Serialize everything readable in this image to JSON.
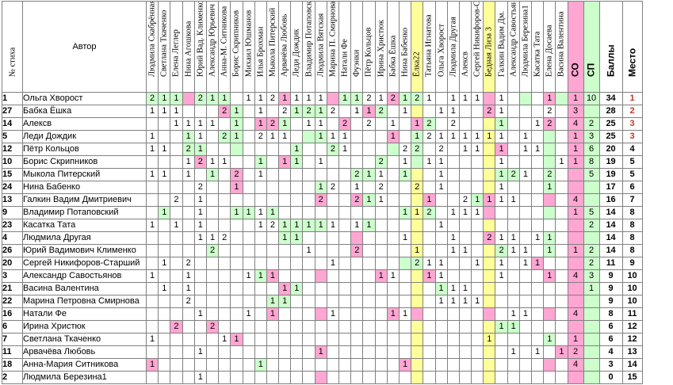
{
  "headers": {
    "num": "№ стиха",
    "author": "Автор",
    "judges": [
      {
        "name": "Людмила Скабрённая",
        "bg": "#ffffff"
      },
      {
        "name": "Светлана Ткаченко",
        "bg": "#ffffff"
      },
      {
        "name": "Елена Леглер",
        "bg": "#ffffff"
      },
      {
        "name": "Нина Агошкова",
        "bg": "#ffffff"
      },
      {
        "name": "Юрий Вад. Клименко",
        "bg": "#ffffff"
      },
      {
        "name": "Александр Юрьевич",
        "bg": "#ffffff"
      },
      {
        "name": "Анна-М. Ситникова",
        "bg": "#ffffff"
      },
      {
        "name": "Борис Скрипников",
        "bg": "#ffffff"
      },
      {
        "name": "Михаил Юшманов",
        "bg": "#ffffff"
      },
      {
        "name": "Илья Брохман",
        "bg": "#ffffff"
      },
      {
        "name": "Мыкола Питерский",
        "bg": "#ffffff"
      },
      {
        "name": "Арвачёва Любовь",
        "bg": "#ffffff"
      },
      {
        "name": "Леди Дождик",
        "bg": "#ffffff"
      },
      {
        "name": "Владимир Потаповский",
        "bg": "#ffffff"
      },
      {
        "name": "Людмила Вятская",
        "bg": "#ffffff"
      },
      {
        "name": "Марина П. Смирнова",
        "bg": "#ffffff"
      },
      {
        "name": "Натали Фе",
        "bg": "#ffffff"
      },
      {
        "name": "Фуэнки",
        "bg": "#ffffff"
      },
      {
        "name": "Пётр Кольцов",
        "bg": "#ffffff"
      },
      {
        "name": "Ирина Христюк",
        "bg": "#ffffff"
      },
      {
        "name": "Бабка Ёшка",
        "bg": "#ffffff"
      },
      {
        "name": "Нина Бабенко",
        "bg": "#ffffff"
      },
      {
        "name": "Ёлка22",
        "bg": "#ffff99"
      },
      {
        "name": "Татьяна Игнатова",
        "bg": "#ffffff"
      },
      {
        "name": "Ольга Хворост",
        "bg": "#ffffff"
      },
      {
        "name": "Людмила Другая",
        "bg": "#ffffff"
      },
      {
        "name": "Алексв",
        "bg": "#ffffff"
      },
      {
        "name": "Сергей Никифоров-С",
        "bg": "#ffffff"
      },
      {
        "name": "Бедная Лиза 3",
        "bg": "#ffff99"
      },
      {
        "name": "Галкин Вадим Дм.",
        "bg": "#ffffff"
      },
      {
        "name": "Александр Савостьяно",
        "bg": "#ffffff"
      },
      {
        "name": "Людмила Березина1",
        "bg": "#ffffff"
      },
      {
        "name": "Касатка Тата",
        "bg": "#ffffff"
      },
      {
        "name": "Елена Досаева",
        "bg": "#ffffff"
      },
      {
        "name": "Васина Валентина",
        "bg": "#ffffff"
      }
    ],
    "co": "СО",
    "sp": "СП",
    "balls": "Баллы",
    "place": "Место"
  },
  "colors": {
    "pink": "#ffa6d2",
    "green": "#ccffcc",
    "yellow": "#ffff99",
    "grid": "#808080",
    "place_red": "#c0392b"
  },
  "rows": [
    {
      "num": "1",
      "author": "Ольга Хворост",
      "scores": {
        "0": "2",
        "1": "1",
        "2": "1",
        "4": "2",
        "5": "1",
        "6": "1",
        "8": "1",
        "9": "1",
        "10": "2",
        "11": "1",
        "12": "1",
        "13": "1",
        "14": "1",
        "16": "1",
        "17": "1",
        "18": "2",
        "19": "1",
        "20": "2",
        "21": "1",
        "22": "2",
        "23": "1",
        "25": "1",
        "26": "1",
        "27": "1",
        "29": "1",
        "33": "1"
      },
      "co": "1",
      "sp": "10",
      "balls": "34",
      "place": "1"
    },
    {
      "num": "27",
      "author": "Бабка Ёшка",
      "scores": {
        "0": "1",
        "1": "1",
        "2": "1",
        "6": "2",
        "7": "1",
        "9": "1",
        "11": "2",
        "12": "1",
        "13": "2",
        "14": "1",
        "15": "2",
        "17": "1",
        "18": "1",
        "19": "2",
        "21": "1",
        "24": "1",
        "25": "1",
        "28": "2",
        "29": "1",
        "33": "2"
      },
      "co": "3",
      "sp": "",
      "balls": "28",
      "place": "2"
    },
    {
      "num": "14",
      "author": "Алексв",
      "scores": {
        "2": "1",
        "3": "1",
        "4": "1",
        "5": "1",
        "7": "1",
        "9": "1",
        "10": "2",
        "11": "1",
        "13": "1",
        "14": "1",
        "16": "2",
        "18": "2",
        "20": "1",
        "22": "1",
        "23": "2",
        "25": "2",
        "29": "1",
        "32": "1",
        "33": "2"
      },
      "co": "4",
      "sp": "2",
      "balls": "25",
      "place": "3"
    },
    {
      "num": "5",
      "author": "Леди Дождик",
      "scores": {
        "0": "1",
        "3": "1",
        "4": "1",
        "6": "2",
        "7": "1",
        "9": "2",
        "10": "1",
        "11": "1",
        "14": "1",
        "15": "1",
        "16": "1",
        "20": "1",
        "22": "1",
        "23": "2",
        "24": "1",
        "25": "1",
        "26": "1",
        "27": "1",
        "28": "1",
        "29": "1",
        "31": "1"
      },
      "co": "1",
      "sp": "3",
      "balls": "25",
      "place": "3"
    },
    {
      "num": "12",
      "author": "Пётр Кольцов",
      "scores": {
        "0": "1",
        "1": "1",
        "3": "2",
        "4": "1",
        "12": "1",
        "15": "2",
        "16": "1",
        "21": "2",
        "22": "2",
        "24": "2",
        "26": "1",
        "27": "1",
        "29": "1",
        "31": "1",
        "32": "1"
      },
      "co": "1",
      "sp": "6",
      "balls": "20",
      "place": "4"
    },
    {
      "num": "10",
      "author": "Борис Скрипников",
      "scores": {
        "3": "1",
        "4": "2",
        "5": "1",
        "6": "1",
        "9": "1",
        "11": "1",
        "12": "1",
        "14": "1",
        "19": "2",
        "21": "1",
        "23": "1",
        "24": "1",
        "29": "1",
        "34": "1"
      },
      "co": "1",
      "sp": "8",
      "balls": "19",
      "place": "5"
    },
    {
      "num": "15",
      "author": "Мыкола Питерский",
      "scores": {
        "0": "1",
        "1": "1",
        "3": "1",
        "5": "1",
        "7": "2",
        "9": "1",
        "17": "2",
        "18": "1",
        "19": "1",
        "21": "1",
        "24": "1",
        "29": "1",
        "30": "2",
        "31": "1",
        "33": "2"
      },
      "co": "",
      "sp": "5",
      "balls": "19",
      "place": "5"
    },
    {
      "num": "24",
      "author": "Нина Бабенко",
      "scores": {
        "4": "2",
        "7": "1",
        "14": "1",
        "15": "2",
        "17": "1",
        "19": "2",
        "22": "2",
        "24": "1",
        "29": "1",
        "33": "1"
      },
      "co": "",
      "sp": "",
      "balls": "17",
      "place": "6"
    },
    {
      "num": "13",
      "author": "Галкин Вадим Дмитриевич",
      "scores": {
        "2": "2",
        "4": "1",
        "14": "2",
        "17": "2",
        "18": "1",
        "19": "1",
        "23": "1",
        "26": "2",
        "27": "1",
        "28": "1",
        "29": "1",
        "30": "1"
      },
      "co": "4",
      "sp": "",
      "balls": "16",
      "place": "7"
    },
    {
      "num": "9",
      "author": "Владимир Потаповский",
      "scores": {
        "1": "1",
        "4": "1",
        "7": "1",
        "8": "1",
        "9": "1",
        "10": "1",
        "21": "1",
        "22": "1",
        "23": "2",
        "25": "1",
        "26": "1",
        "27": "1"
      },
      "co": "1",
      "sp": "5",
      "balls": "14",
      "place": "8"
    },
    {
      "num": "23",
      "author": "Касатка Тата",
      "scores": {
        "0": "1",
        "2": "1",
        "4": "1",
        "9": "1",
        "10": "2",
        "11": "1",
        "12": "1",
        "13": "1",
        "14": "1",
        "15": "1",
        "17": "1",
        "18": "1",
        "24": "1"
      },
      "co": "",
      "sp": "2",
      "balls": "14",
      "place": "8"
    },
    {
      "num": "4",
      "author": "Людмила Другая",
      "scores": {
        "4": "1",
        "5": "1",
        "6": "2",
        "11": "1",
        "12": "1",
        "21": "1",
        "25": "1",
        "28": "2",
        "29": "1",
        "30": "1",
        "32": "1",
        "33": "1"
      },
      "co": "",
      "sp": "",
      "balls": "14",
      "place": "8"
    },
    {
      "num": "26",
      "author": "Юрий Вадимович Клименко",
      "scores": {
        "5": "2",
        "13": "1",
        "17": "2",
        "22": "1",
        "25": "1",
        "26": "1",
        "29": "2",
        "30": "1",
        "31": "1",
        "33": "1"
      },
      "co": "1",
      "sp": "2",
      "balls": "14",
      "place": "8"
    },
    {
      "num": "20",
      "author": "Сергей Никифоров-Старший",
      "scores": {
        "1": "1",
        "3": "2",
        "15": "1",
        "22": "2",
        "23": "1",
        "24": "1",
        "27": "1",
        "29": "1",
        "31": "1",
        "32": "1"
      },
      "co": "",
      "sp": "2",
      "balls": "11",
      "place": "9"
    },
    {
      "num": "3",
      "author": "Александр Савостьянов",
      "scores": {
        "0": "1",
        "3": "1",
        "8": "1",
        "9": "1",
        "10": "1",
        "19": "1",
        "20": "1",
        "23": "1",
        "24": "1",
        "29": "1",
        "33": "1"
      },
      "co": "4",
      "sp": "3",
      "balls": "9",
      "place": "10"
    },
    {
      "num": "21",
      "author": "Васина Валентина",
      "scores": {
        "1": "1",
        "3": "1",
        "11": "1",
        "12": "1",
        "24": "1",
        "25": "1",
        "26": "1"
      },
      "co": "",
      "sp": "1",
      "balls": "9",
      "place": "10"
    },
    {
      "num": "22",
      "author": "Марина Петровна Смирнова",
      "scores": {
        "3": "2",
        "10": "1",
        "11": "1",
        "24": "1",
        "25": "1",
        "26": "1",
        "27": "1"
      },
      "co": "",
      "sp": "",
      "balls": "9",
      "place": "10"
    },
    {
      "num": "16",
      "author": "Натали Фе",
      "scores": {
        "4": "1",
        "8": "1",
        "10": "1",
        "15": "1",
        "20": "1",
        "21": "1",
        "30": "1",
        "31": "1"
      },
      "co": "4",
      "sp": "",
      "balls": "8",
      "place": "11"
    },
    {
      "num": "6",
      "author": "Ирина Христюк",
      "scores": {
        "2": "2",
        "5": "2",
        "29": "1",
        "30": "1"
      },
      "co": "",
      "sp": "",
      "balls": "6",
      "place": "12"
    },
    {
      "num": "7",
      "author": "Светлана Ткаченко",
      "scores": {
        "0": "1",
        "6": "1",
        "7": "1",
        "28": "1",
        "33": "1"
      },
      "co": "1",
      "sp": "",
      "balls": "6",
      "place": "12"
    },
    {
      "num": "11",
      "author": "Арвачёва Любовь",
      "scores": {
        "4": "1",
        "14": "1",
        "30": "1",
        "32": "1",
        "34": "1"
      },
      "co": "2",
      "sp": "",
      "balls": "4",
      "place": "13"
    },
    {
      "num": "18",
      "author": "Анна-Мария Ситникова",
      "scores": {
        "0": "1",
        "9": "1",
        "21": "1"
      },
      "co": "4",
      "sp": "",
      "balls": "3",
      "place": "14"
    },
    {
      "num": "2",
      "author": "Людмила Березина1",
      "scores": {
        "4": "1"
      },
      "co": "",
      "sp": "",
      "balls": "0",
      "place": "15"
    }
  ],
  "cell_colors": {
    "0": {
      "0": "green",
      "1": "green",
      "2": "green",
      "3": "pink",
      "4": "green",
      "5": "green",
      "6": "green",
      "11": "pink",
      "15": "pink",
      "16": "green",
      "17": "green",
      "20": "pink",
      "21": "green",
      "22": "green",
      "28": "pink",
      "31": "green",
      "33": "pink",
      "34": "green"
    },
    "1": {
      "6": "pink",
      "7": "green",
      "12": "green",
      "13": "green",
      "14": "green",
      "18": "pink",
      "19": "green",
      "28": "pink"
    },
    "2": {
      "7": "green",
      "9": "pink",
      "10": "pink",
      "11": "green",
      "16": "pink",
      "22": "pink",
      "23": "green",
      "29": "green",
      "33": "pink"
    },
    "3": {
      "3": "green",
      "6": "green",
      "7": "green",
      "13": "green",
      "14": "green",
      "20": "pink",
      "22": "green",
      "33": "green"
    },
    "4": {
      "3": "green",
      "4": "green",
      "7": "green",
      "12": "green",
      "15": "green",
      "20": "green",
      "22": "green",
      "29": "pink",
      "33": "green"
    },
    "5": {
      "4": "pink",
      "9": "green",
      "11": "pink",
      "12": "green",
      "19": "green",
      "22": "green",
      "33": "green"
    },
    "6": {
      "5": "green",
      "7": "pink",
      "17": "green",
      "18": "green",
      "21": "green",
      "29": "green",
      "30": "green",
      "33": "green"
    },
    "7": {
      "7": "pink",
      "14": "green",
      "33": "green"
    },
    "8": {
      "14": "pink",
      "17": "pink",
      "18": "green",
      "23": "pink",
      "27": "green",
      "28": "pink",
      "33": "pink"
    },
    "9": {
      "1": "green",
      "7": "green",
      "8": "green",
      "10": "green",
      "21": "green",
      "23": "green",
      "28": "pink",
      "33": "green"
    },
    "10": {
      "11": "green",
      "12": "green",
      "13": "green",
      "14": "green",
      "18": "green"
    },
    "11": {
      "11": "green",
      "12": "green",
      "17": "pink",
      "28": "pink",
      "33": "green"
    },
    "12": {
      "5": "green",
      "17": "pink",
      "29": "green",
      "33": "green"
    },
    "13": {
      "21": "green",
      "22": "green",
      "32": "pink"
    },
    "14": {
      "9": "green",
      "10": "pink",
      "14": "pink",
      "19": "pink",
      "23": "pink",
      "33": "pink"
    },
    "15": {
      "11": "pink",
      "12": "green",
      "24": "green"
    },
    "16": {
      "10": "green",
      "11": "green"
    },
    "17": {
      "10": "pink",
      "14": "pink",
      "20": "pink",
      "22": "pink",
      "28": "pink",
      "33": "pink"
    },
    "18": {
      "2": "pink",
      "5": "pink",
      "29": "green",
      "30": "green"
    },
    "19": {
      "7": "pink",
      "33": "green"
    },
    "20": {
      "14": "pink",
      "34": "pink"
    },
    "21": {
      "0": "pink",
      "9": "green",
      "21": "pink",
      "33": "pink"
    },
    "22": {
      "14": "pink"
    }
  }
}
